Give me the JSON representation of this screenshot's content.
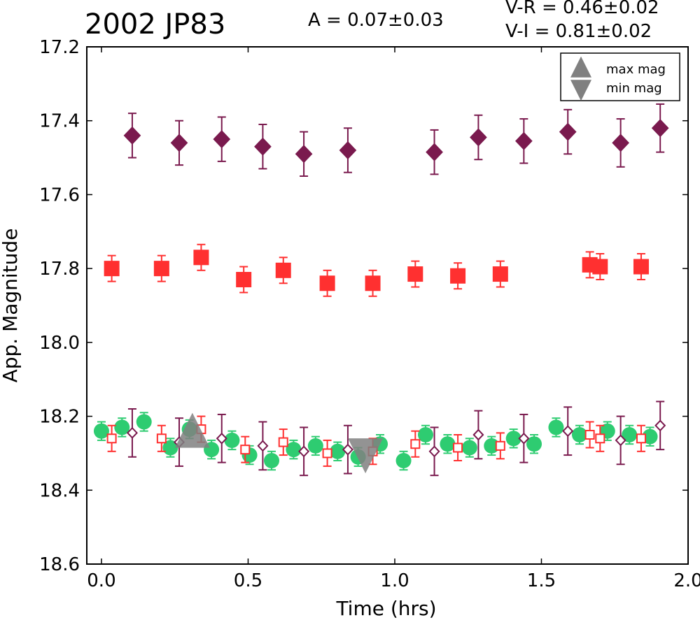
{
  "chart_data": {
    "type": "scatter",
    "title": "2002 JP83",
    "annotations": {
      "amplitude": "A  = 0.07±0.03",
      "v_r": "V-R = 0.46±0.02",
      "v_i": "V-I  = 0.81±0.02"
    },
    "xlabel": "Time (hrs)",
    "ylabel": "App. Magnitude",
    "xlim": [
      -0.05,
      2.0
    ],
    "ylim": [
      18.6,
      17.2
    ],
    "y_inverted": true,
    "x_ticks": [
      "0.0",
      "0.5",
      "1.0",
      "1.5",
      "2.0"
    ],
    "y_ticks": [
      "17.2",
      "17.4",
      "17.6",
      "17.8",
      "18.0",
      "18.2",
      "18.4",
      "18.6"
    ],
    "grid": false,
    "legend": {
      "placement": "top-right",
      "entries": [
        {
          "label": "max mag",
          "marker": "triangle-up",
          "color": "#808080"
        },
        {
          "label": "min mag",
          "marker": "triangle-down",
          "color": "#808080"
        }
      ]
    },
    "colors": {
      "green": "#2ecc71",
      "red": "#ff3030",
      "purple": "#7a1a4e",
      "gray": "#808080"
    },
    "series": [
      {
        "marker": "diamond",
        "filled": true,
        "color": "#7a1a4e",
        "points": [
          {
            "x": 0.105,
            "y": 17.44,
            "err": 0.06
          },
          {
            "x": 0.265,
            "y": 17.46,
            "err": 0.06
          },
          {
            "x": 0.41,
            "y": 17.45,
            "err": 0.06
          },
          {
            "x": 0.55,
            "y": 17.47,
            "err": 0.06
          },
          {
            "x": 0.69,
            "y": 17.49,
            "err": 0.06
          },
          {
            "x": 0.84,
            "y": 17.48,
            "err": 0.06
          },
          {
            "x": 1.135,
            "y": 17.485,
            "err": 0.06
          },
          {
            "x": 1.285,
            "y": 17.445,
            "err": 0.06
          },
          {
            "x": 1.44,
            "y": 17.455,
            "err": 0.06
          },
          {
            "x": 1.59,
            "y": 17.43,
            "err": 0.06
          },
          {
            "x": 1.77,
            "y": 17.46,
            "err": 0.065
          },
          {
            "x": 1.905,
            "y": 17.42,
            "err": 0.065
          }
        ]
      },
      {
        "marker": "square",
        "filled": true,
        "color": "#ff3030",
        "points": [
          {
            "x": 0.035,
            "y": 17.8,
            "err": 0.035
          },
          {
            "x": 0.205,
            "y": 17.8,
            "err": 0.035
          },
          {
            "x": 0.34,
            "y": 17.77,
            "err": 0.035
          },
          {
            "x": 0.485,
            "y": 17.83,
            "err": 0.035
          },
          {
            "x": 0.62,
            "y": 17.805,
            "err": 0.035
          },
          {
            "x": 0.77,
            "y": 17.84,
            "err": 0.035
          },
          {
            "x": 0.925,
            "y": 17.84,
            "err": 0.035
          },
          {
            "x": 1.07,
            "y": 17.815,
            "err": 0.035
          },
          {
            "x": 1.215,
            "y": 17.82,
            "err": 0.035
          },
          {
            "x": 1.36,
            "y": 17.815,
            "err": 0.035
          },
          {
            "x": 1.665,
            "y": 17.79,
            "err": 0.035
          },
          {
            "x": 1.7,
            "y": 17.795,
            "err": 0.035
          },
          {
            "x": 1.84,
            "y": 17.795,
            "err": 0.035
          }
        ]
      },
      {
        "marker": "circle",
        "filled": true,
        "color": "#2ecc71",
        "points": [
          {
            "x": 0.0,
            "y": 18.24,
            "err": 0.025
          },
          {
            "x": 0.07,
            "y": 18.23,
            "err": 0.025
          },
          {
            "x": 0.145,
            "y": 18.215,
            "err": 0.025
          },
          {
            "x": 0.235,
            "y": 18.285,
            "err": 0.025
          },
          {
            "x": 0.3,
            "y": 18.235,
            "err": 0.025
          },
          {
            "x": 0.375,
            "y": 18.29,
            "err": 0.025
          },
          {
            "x": 0.445,
            "y": 18.265,
            "err": 0.025
          },
          {
            "x": 0.505,
            "y": 18.305,
            "err": 0.025
          },
          {
            "x": 0.58,
            "y": 18.32,
            "err": 0.025
          },
          {
            "x": 0.655,
            "y": 18.29,
            "err": 0.025
          },
          {
            "x": 0.73,
            "y": 18.28,
            "err": 0.025
          },
          {
            "x": 0.805,
            "y": 18.295,
            "err": 0.025
          },
          {
            "x": 0.875,
            "y": 18.31,
            "err": 0.025
          },
          {
            "x": 0.95,
            "y": 18.275,
            "err": 0.025
          },
          {
            "x": 1.03,
            "y": 18.32,
            "err": 0.025
          },
          {
            "x": 1.105,
            "y": 18.25,
            "err": 0.025
          },
          {
            "x": 1.18,
            "y": 18.275,
            "err": 0.025
          },
          {
            "x": 1.255,
            "y": 18.285,
            "err": 0.025
          },
          {
            "x": 1.33,
            "y": 18.28,
            "err": 0.025
          },
          {
            "x": 1.405,
            "y": 18.26,
            "err": 0.025
          },
          {
            "x": 1.475,
            "y": 18.275,
            "err": 0.025
          },
          {
            "x": 1.55,
            "y": 18.23,
            "err": 0.025
          },
          {
            "x": 1.63,
            "y": 18.25,
            "err": 0.025
          },
          {
            "x": 1.725,
            "y": 18.24,
            "err": 0.025
          },
          {
            "x": 1.8,
            "y": 18.25,
            "err": 0.025
          },
          {
            "x": 1.87,
            "y": 18.255,
            "err": 0.025
          }
        ]
      },
      {
        "marker": "square",
        "filled": false,
        "color": "#ff3030",
        "points": [
          {
            "x": 0.035,
            "y": 18.26,
            "err": 0.035
          },
          {
            "x": 0.205,
            "y": 18.26,
            "err": 0.035
          },
          {
            "x": 0.34,
            "y": 18.235,
            "err": 0.035
          },
          {
            "x": 0.49,
            "y": 18.29,
            "err": 0.035
          },
          {
            "x": 0.62,
            "y": 18.27,
            "err": 0.035
          },
          {
            "x": 0.77,
            "y": 18.3,
            "err": 0.035
          },
          {
            "x": 0.925,
            "y": 18.295,
            "err": 0.035
          },
          {
            "x": 1.07,
            "y": 18.275,
            "err": 0.035
          },
          {
            "x": 1.215,
            "y": 18.285,
            "err": 0.035
          },
          {
            "x": 1.36,
            "y": 18.28,
            "err": 0.035
          },
          {
            "x": 1.665,
            "y": 18.25,
            "err": 0.035
          },
          {
            "x": 1.7,
            "y": 18.26,
            "err": 0.035
          },
          {
            "x": 1.84,
            "y": 18.26,
            "err": 0.035
          }
        ]
      },
      {
        "marker": "diamond",
        "filled": false,
        "color": "#7a1a4e",
        "points": [
          {
            "x": 0.105,
            "y": 18.245,
            "err": 0.065
          },
          {
            "x": 0.265,
            "y": 18.27,
            "err": 0.065
          },
          {
            "x": 0.41,
            "y": 18.26,
            "err": 0.065
          },
          {
            "x": 0.55,
            "y": 18.28,
            "err": 0.065
          },
          {
            "x": 0.69,
            "y": 18.295,
            "err": 0.065
          },
          {
            "x": 0.84,
            "y": 18.29,
            "err": 0.065
          },
          {
            "x": 1.135,
            "y": 18.295,
            "err": 0.065
          },
          {
            "x": 1.285,
            "y": 18.25,
            "err": 0.065
          },
          {
            "x": 1.44,
            "y": 18.26,
            "err": 0.065
          },
          {
            "x": 1.59,
            "y": 18.24,
            "err": 0.065
          },
          {
            "x": 1.77,
            "y": 18.265,
            "err": 0.065
          },
          {
            "x": 1.905,
            "y": 18.225,
            "err": 0.065
          }
        ]
      },
      {
        "marker": "triangle-up",
        "filled": true,
        "color": "#808080",
        "points": [
          {
            "x": 0.31,
            "y": 18.245
          }
        ]
      },
      {
        "marker": "triangle-down",
        "filled": true,
        "color": "#808080",
        "points": [
          {
            "x": 0.9,
            "y": 18.3
          }
        ]
      }
    ]
  }
}
